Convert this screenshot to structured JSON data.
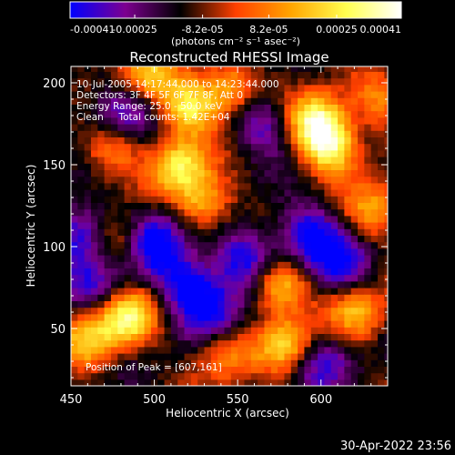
{
  "chart_data": {
    "type": "heatmap",
    "title": "Reconstructed RHESSI Image",
    "xlabel": "Heliocentric X (arcsec)",
    "ylabel": "Heliocentric Y (arcsec)",
    "xlim": [
      450,
      640
    ],
    "ylim": [
      15,
      210
    ],
    "x_ticks": [
      "450",
      "500",
      "550",
      "600"
    ],
    "y_ticks": [
      "50",
      "100",
      "150",
      "200"
    ],
    "x_tick_values": [
      450,
      500,
      550,
      600
    ],
    "y_tick_values": [
      50,
      100,
      150,
      200
    ],
    "colorbar": {
      "range": [
        -0.00041,
        0.00041
      ],
      "tick_values": [
        -0.00041,
        -0.00025,
        -8.2e-05,
        8.2e-05,
        0.00025,
        0.00041
      ],
      "tick_labels": [
        "-0.00041",
        "-0.00025",
        "-8.2e-05",
        "8.2e-05",
        "0.00025",
        "0.00041"
      ],
      "units_label": "(photons cm⁻² s⁻¹ asec⁻²)",
      "colors": [
        "#0000ff",
        "#7d0090",
        "#000000",
        "#ff4000",
        "#ffa500",
        "#ffff50",
        "#ffffff"
      ]
    },
    "annotations": [
      "10-Jul-2005 14:17:44.000 to 14:23:44.000",
      "Detectors: 3F 4F 5F 6F 7F 8F, Att 0",
      "Energy Range: 25.0 - 50.0 keV",
      "Clean     Total counts: 1.42E+04"
    ],
    "peak_label": "Position of Peak = [607,161]",
    "bright_regions": [
      {
        "x": 597,
        "y": 177,
        "level": 0.00041
      },
      {
        "x": 606,
        "y": 161,
        "level": 0.00041
      },
      {
        "x": 520,
        "y": 185,
        "level": 0.00038
      },
      {
        "x": 495,
        "y": 205,
        "level": 0.0003
      },
      {
        "x": 546,
        "y": 197,
        "level": 0.0003
      },
      {
        "x": 515,
        "y": 150,
        "level": 0.00036
      },
      {
        "x": 530,
        "y": 128,
        "level": 0.0003
      },
      {
        "x": 474,
        "y": 160,
        "level": 0.00025
      },
      {
        "x": 484,
        "y": 57,
        "level": 0.0004
      },
      {
        "x": 461,
        "y": 43,
        "level": 0.0003
      },
      {
        "x": 575,
        "y": 77,
        "level": 0.00036
      },
      {
        "x": 580,
        "y": 40,
        "level": 0.00034
      },
      {
        "x": 622,
        "y": 60,
        "level": 0.00028
      },
      {
        "x": 632,
        "y": 122,
        "level": 0.00025
      },
      {
        "x": 480,
        "y": 103,
        "level": 0.00022
      },
      {
        "x": 542,
        "y": 35,
        "level": 0.00022
      },
      {
        "x": 636,
        "y": 188,
        "level": 0.0002
      }
    ],
    "dark_regions": [
      {
        "x": 500,
        "y": 103,
        "level": -0.00034
      },
      {
        "x": 555,
        "y": 92,
        "level": -0.0003
      },
      {
        "x": 592,
        "y": 108,
        "level": -0.0003
      },
      {
        "x": 480,
        "y": 182,
        "level": -0.00028
      },
      {
        "x": 455,
        "y": 108,
        "level": -0.0003
      },
      {
        "x": 535,
        "y": 60,
        "level": -0.00025
      },
      {
        "x": 520,
        "y": 78,
        "level": -0.0003
      },
      {
        "x": 600,
        "y": 30,
        "level": -0.00022
      },
      {
        "x": 612,
        "y": 90,
        "level": -0.00025
      },
      {
        "x": 565,
        "y": 175,
        "level": -0.00022
      },
      {
        "x": 466,
        "y": 78,
        "level": -0.0002
      }
    ]
  },
  "footer": {
    "timestamp": "30-Apr-2022 23:56"
  }
}
